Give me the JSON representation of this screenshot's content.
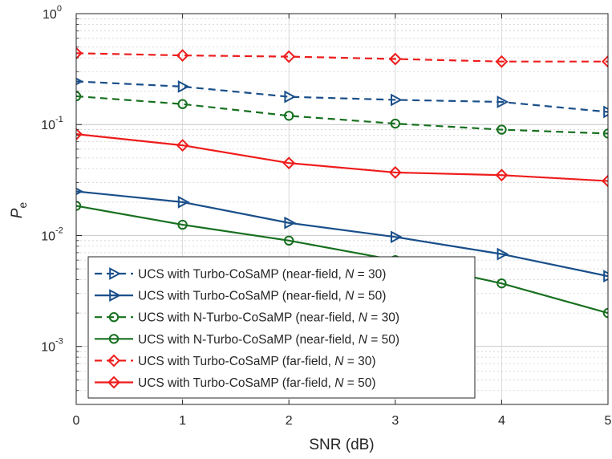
{
  "chart_data": {
    "type": "line",
    "xlabel": "SNR (dB)",
    "ylabel": {
      "main": "P",
      "sub": "e"
    },
    "xlim": [
      0,
      5
    ],
    "ylim": [
      0.0003,
      1
    ],
    "yscale": "log",
    "grid": true,
    "legend_position": "bottom-left",
    "x_ticks": [
      0,
      1,
      2,
      3,
      4,
      5
    ],
    "y_ticks": [
      {
        "value": 1,
        "base": "10",
        "exp": "0"
      },
      {
        "value": 0.1,
        "base": "10",
        "exp": "-1"
      },
      {
        "value": 0.01,
        "base": "10",
        "exp": "-2"
      },
      {
        "value": 0.001,
        "base": "10",
        "exp": "-3"
      }
    ],
    "x": [
      0,
      1,
      2,
      3,
      4,
      5
    ],
    "series": [
      {
        "legend_prefix": "UCS with Turbo-CoSaMP (near-field, ",
        "legend_var": "N",
        "legend_suffix": " = 30)",
        "color": "#1a4f8a",
        "dash": true,
        "marker": "triangle-right",
        "values": [
          0.245,
          0.22,
          0.178,
          0.167,
          0.16,
          0.13
        ]
      },
      {
        "legend_prefix": "UCS with Turbo-CoSaMP (near-field, ",
        "legend_var": "N",
        "legend_suffix": " = 50)",
        "color": "#1a4f8a",
        "dash": false,
        "marker": "triangle-right",
        "values": [
          0.025,
          0.02,
          0.013,
          0.0097,
          0.0068,
          0.0043
        ]
      },
      {
        "legend_prefix": "UCS with N-Turbo-CoSaMP (near-field, ",
        "legend_var": "N",
        "legend_suffix": " = 30)",
        "color": "#17701f",
        "dash": true,
        "marker": "circle",
        "values": [
          0.18,
          0.153,
          0.12,
          0.102,
          0.09,
          0.083
        ]
      },
      {
        "legend_prefix": "UCS with N-Turbo-CoSaMP (near-field, ",
        "legend_var": "N",
        "legend_suffix": " = 50)",
        "color": "#17701f",
        "dash": false,
        "marker": "circle",
        "values": [
          0.0185,
          0.0125,
          0.009,
          0.006,
          0.0037,
          0.002
        ]
      },
      {
        "legend_prefix": "UCS with Turbo-CoSaMP (far-field, ",
        "legend_var": "N",
        "legend_suffix": " = 30)",
        "color": "#ee1c1c",
        "dash": true,
        "marker": "diamond",
        "values": [
          0.44,
          0.42,
          0.41,
          0.39,
          0.37,
          0.37
        ]
      },
      {
        "legend_prefix": "UCS with Turbo-CoSaMP (far-field, ",
        "legend_var": "N",
        "legend_suffix": " = 50)",
        "color": "#ee1c1c",
        "dash": false,
        "marker": "diamond",
        "values": [
          0.082,
          0.065,
          0.045,
          0.037,
          0.035,
          0.031
        ]
      }
    ]
  }
}
